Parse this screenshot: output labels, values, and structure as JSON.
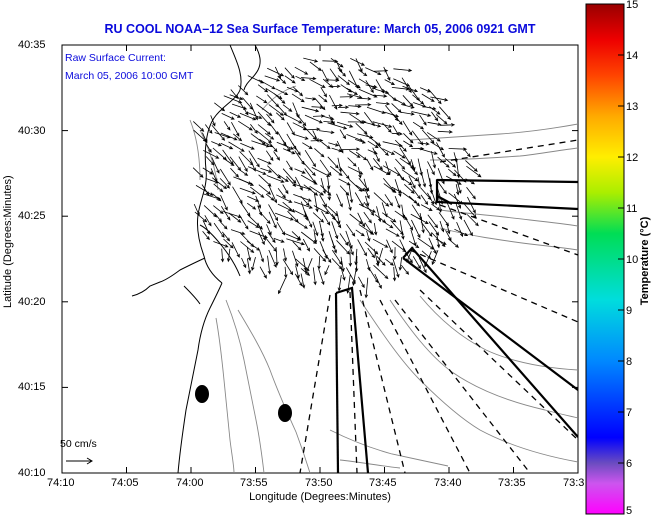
{
  "title": "RU COOL  NOAA–12  Sea Surface Temperature:  March 05, 2006 0921 GMT",
  "legend": {
    "line1": "Raw Surface Current:",
    "line2": "March 05, 2006 10:00 GMT"
  },
  "scale_label": "50 cm/s",
  "axes": {
    "xlabel": "Longitude (Degrees:Minutes)",
    "ylabel": "Latitude (Degrees:Minutes)",
    "x_ticks": [
      "74:10",
      "74:05",
      "74:00",
      "73:55",
      "73:50",
      "73:45",
      "73:40",
      "73:35",
      "73:3"
    ],
    "y_ticks": [
      "40:35",
      "40:30",
      "40:25",
      "40:20",
      "40:15",
      "40:10"
    ]
  },
  "colorbar": {
    "label": "Temperature (°C)",
    "ticks": [
      "15",
      "14",
      "13",
      "12",
      "11",
      "10",
      "9",
      "8",
      "7",
      "6",
      "5"
    ]
  },
  "colors": {
    "title": "#0a0adc",
    "land": "#ffffff",
    "contour": "#888888"
  },
  "icons": {
    "current_vector": "arrow",
    "station_marker": "filled-ellipse"
  }
}
